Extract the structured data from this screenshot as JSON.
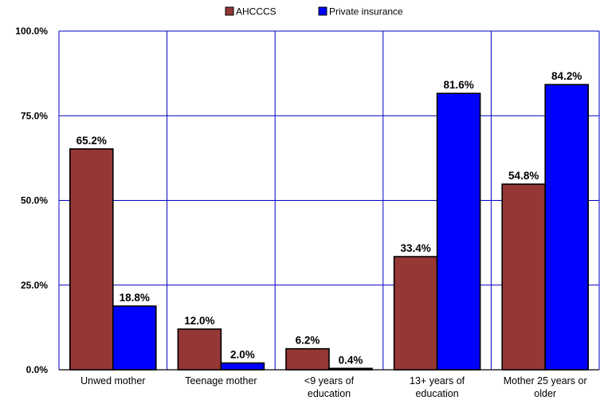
{
  "chart_data": {
    "type": "bar",
    "categories": [
      [
        "Unwed mother"
      ],
      [
        "Teenage mother"
      ],
      [
        "<9 years of",
        "education"
      ],
      [
        "13+ years of",
        "education"
      ],
      [
        "Mother 25 years or",
        "older"
      ]
    ],
    "series": [
      {
        "name": "AHCCCS",
        "color": "#953735",
        "values": [
          65.2,
          12.0,
          6.2,
          33.4,
          54.8
        ],
        "labels": [
          "65.2%",
          "12.0%",
          "6.2%",
          "33.4%",
          "54.8%"
        ]
      },
      {
        "name": "Private insurance",
        "color": "#0000FF",
        "values": [
          18.8,
          2.0,
          0.4,
          81.6,
          84.2
        ],
        "labels": [
          "18.8%",
          "2.0%",
          "0.4%",
          "81.6%",
          "84.2%"
        ]
      }
    ],
    "ylim": [
      0,
      100
    ],
    "yticks": [
      0,
      25,
      50,
      75,
      100
    ],
    "ytick_labels": [
      "0.0%",
      "25.0%",
      "50.0%",
      "75.0%",
      "100.0%"
    ],
    "grid": true,
    "grid_color": "#0000C0",
    "legend_position": "top-center",
    "title": "",
    "xlabel": "",
    "ylabel": ""
  }
}
